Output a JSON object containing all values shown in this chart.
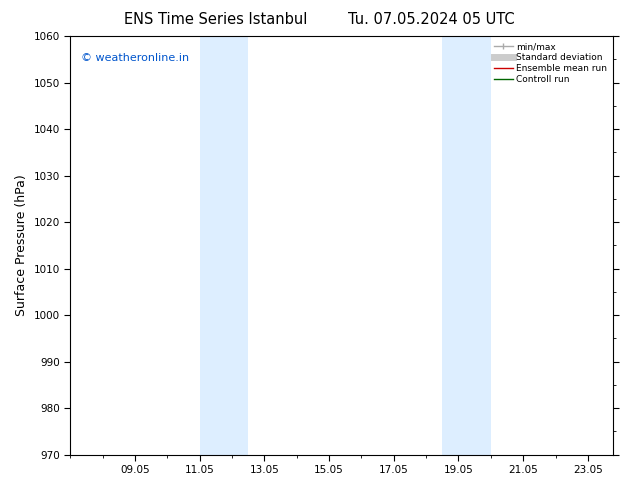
{
  "title": "ENS Time Series Istanbul",
  "title2": "Tu. 07.05.2024 05 UTC",
  "ylabel": "Surface Pressure (hPa)",
  "ylim": [
    970,
    1060
  ],
  "yticks": [
    970,
    980,
    990,
    1000,
    1010,
    1020,
    1030,
    1040,
    1050,
    1060
  ],
  "xtick_labels": [
    "09.05",
    "11.05",
    "13.05",
    "15.05",
    "17.05",
    "19.05",
    "21.05",
    "23.05"
  ],
  "xtick_positions_days": [
    2,
    4,
    6,
    8,
    10,
    12,
    14,
    16
  ],
  "xlim_days": [
    0,
    16.79
  ],
  "blue_bands": [
    {
      "start_day": 4.0,
      "end_day": 5.5
    },
    {
      "start_day": 11.5,
      "end_day": 13.0
    }
  ],
  "band_color": "#ddeeff",
  "background_color": "#ffffff",
  "watermark": "© weatheronline.in",
  "watermark_color": "#0055cc",
  "legend_entries": [
    {
      "label": "min/max",
      "color": "#aaaaaa",
      "lw": 1.0
    },
    {
      "label": "Standard deviation",
      "color": "#cccccc",
      "lw": 5
    },
    {
      "label": "Ensemble mean run",
      "color": "#cc0000",
      "lw": 1.0
    },
    {
      "label": "Controll run",
      "color": "#006600",
      "lw": 1.0
    }
  ],
  "grid_color": "#cccccc",
  "axis_color": "#000000",
  "tick_fontsize": 7.5,
  "label_fontsize": 9,
  "title_fontsize": 10.5,
  "watermark_fontsize": 8
}
